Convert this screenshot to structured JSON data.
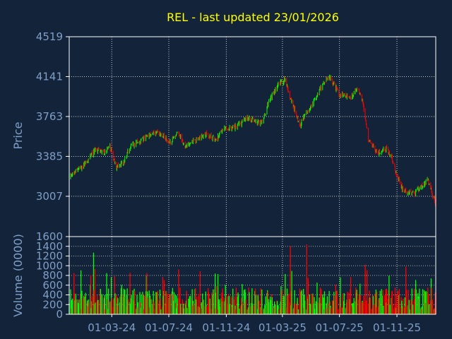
{
  "colors": {
    "background": "#13233a",
    "plot_border": "#ffffff",
    "grid": "#c8c8c8",
    "title": "#ffff00",
    "axis_text": "#7f9fc7",
    "up": "#00ff00",
    "down": "#ff0000"
  },
  "chart_data": [
    {
      "type": "candlestick",
      "title": "REL - last updated 23/01/2026",
      "ylabel": "Price",
      "ylim": [
        2625,
        4519
      ],
      "yticks": [
        3007,
        3385,
        3763,
        4141,
        4519
      ],
      "yticklabels": [
        "3007",
        "3385",
        "3763",
        "4141",
        "4519"
      ],
      "date_range": [
        "2023-12-01",
        "2026-01-23"
      ],
      "grid": true,
      "price_path": [
        [
          "2023-12-01",
          3190
        ],
        [
          "2024-01-03",
          3310
        ],
        [
          "2024-01-25",
          3450
        ],
        [
          "2024-02-15",
          3420
        ],
        [
          "2024-02-26",
          3470
        ],
        [
          "2024-03-10",
          3290
        ],
        [
          "2024-03-25",
          3320
        ],
        [
          "2024-04-10",
          3480
        ],
        [
          "2024-05-01",
          3530
        ],
        [
          "2024-06-01",
          3620
        ],
        [
          "2024-06-20",
          3580
        ],
        [
          "2024-07-05",
          3520
        ],
        [
          "2024-07-20",
          3620
        ],
        [
          "2024-08-05",
          3480
        ],
        [
          "2024-08-25",
          3530
        ],
        [
          "2024-09-20",
          3590
        ],
        [
          "2024-10-10",
          3540
        ],
        [
          "2024-10-25",
          3650
        ],
        [
          "2024-11-20",
          3660
        ],
        [
          "2024-12-20",
          3750
        ],
        [
          "2025-01-15",
          3690
        ],
        [
          "2025-02-01",
          3920
        ],
        [
          "2025-02-20",
          4060
        ],
        [
          "2025-03-05",
          4120
        ],
        [
          "2025-03-25",
          3850
        ],
        [
          "2025-04-08",
          3680
        ],
        [
          "2025-04-20",
          3800
        ],
        [
          "2025-05-10",
          3920
        ],
        [
          "2025-05-25",
          4060
        ],
        [
          "2025-06-10",
          4140
        ],
        [
          "2025-07-01",
          3970
        ],
        [
          "2025-07-25",
          3950
        ],
        [
          "2025-08-10",
          4030
        ],
        [
          "2025-08-20",
          3900
        ],
        [
          "2025-09-01",
          3540
        ],
        [
          "2025-09-20",
          3420
        ],
        [
          "2025-10-10",
          3460
        ],
        [
          "2025-10-20",
          3380
        ],
        [
          "2025-11-01",
          3200
        ],
        [
          "2025-11-15",
          3050
        ],
        [
          "2025-12-10",
          3040
        ],
        [
          "2025-12-25",
          3100
        ],
        [
          "2026-01-05",
          3170
        ],
        [
          "2026-01-23",
          2930
        ]
      ]
    },
    {
      "type": "bar",
      "ylabel": "Volume (0000)",
      "ylim": [
        0,
        1600
      ],
      "yticks": [
        0,
        200,
        400,
        600,
        800,
        1000,
        1200,
        1400,
        1600
      ],
      "yticklabels": [
        "0",
        "200",
        "400",
        "600",
        "800",
        "1000",
        "1200",
        "1400",
        "1600"
      ],
      "typical_volume": 380,
      "xticks": [
        "2024-03-01",
        "2024-07-01",
        "2024-11-01",
        "2025-03-01",
        "2025-07-01",
        "2025-11-01"
      ],
      "xticklabels": [
        "01-03-24",
        "01-07-24",
        "01-11-24",
        "01-03-25",
        "01-07-25",
        "01-11-25"
      ],
      "spikes": [
        [
          "2024-01-22",
          1270
        ],
        [
          "2025-03-18",
          1400
        ],
        [
          "2025-04-22",
          1440
        ],
        [
          "2025-08-25",
          1020
        ],
        [
          "2025-11-20",
          980
        ]
      ]
    }
  ]
}
